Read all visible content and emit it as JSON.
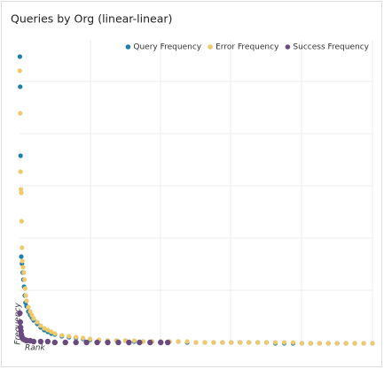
{
  "chart_data": {
    "type": "scatter",
    "title": "Queries by Org (linear-linear)",
    "x_label": "Rank",
    "y_label": "Frequency",
    "xlim": [
      0,
      1000
    ],
    "ylim": [
      0,
      340
    ],
    "series": [
      {
        "name": "Query Frequency",
        "color": "#1f7fb0",
        "x": [
          1,
          2,
          3,
          5,
          7,
          9,
          11,
          13,
          15,
          17,
          20,
          25,
          30,
          35,
          40,
          50,
          60,
          70,
          80,
          90,
          100,
          120,
          140,
          160,
          180,
          200,
          225,
          250,
          275,
          300,
          325,
          350,
          375,
          400,
          425,
          450,
          475,
          500,
          525,
          550,
          575,
          600,
          625,
          650,
          675,
          700,
          725,
          750,
          775,
          800,
          825,
          850,
          875,
          900,
          925,
          950,
          975,
          1000
        ],
        "values": [
          326,
          292,
          214,
          100,
          92,
          82,
          74,
          66,
          56,
          48,
          44,
          38,
          34,
          31,
          28,
          24,
          20,
          17,
          15,
          13,
          12,
          10,
          9,
          8,
          7,
          6,
          5,
          5,
          5,
          5,
          4,
          4,
          4,
          4,
          4,
          4,
          3,
          3,
          3,
          3,
          3,
          3,
          3,
          3,
          3,
          3,
          2,
          2,
          2,
          2,
          2,
          2,
          2,
          2,
          2,
          2,
          2,
          2
        ]
      },
      {
        "name": "Error Frequency",
        "color": "#f0c96b",
        "x": [
          1,
          2,
          3,
          4,
          5,
          6,
          7,
          8,
          10,
          12,
          14,
          16,
          18,
          20,
          25,
          30,
          35,
          40,
          50,
          60,
          70,
          80,
          90,
          100,
          120,
          140,
          160,
          180,
          200,
          225,
          250,
          275,
          300,
          325,
          350,
          375,
          400,
          425,
          450,
          475,
          500,
          525,
          550,
          575,
          600,
          625,
          650,
          675,
          700,
          725,
          750,
          775,
          800,
          825,
          850,
          875,
          900,
          925,
          950,
          975,
          1000
        ],
        "values": [
          310,
          262,
          196,
          176,
          172,
          140,
          110,
          95,
          88,
          82,
          74,
          64,
          56,
          50,
          43,
          38,
          34,
          30,
          26,
          22,
          19,
          17,
          15,
          13,
          11,
          10,
          9,
          8,
          7,
          6,
          5,
          5,
          5,
          5,
          4,
          4,
          4,
          4,
          4,
          4,
          3,
          3,
          3,
          3,
          3,
          3,
          3,
          3,
          3,
          3,
          3,
          3,
          2,
          2,
          2,
          2,
          2,
          2,
          2,
          2,
          2
        ]
      },
      {
        "name": "Success Frequency",
        "color": "#6a4a7f",
        "x": [
          1,
          2,
          3,
          4,
          5,
          6,
          8,
          10,
          15,
          20,
          30,
          40,
          60,
          80,
          100,
          130,
          160,
          190,
          220,
          250,
          280,
          310,
          340,
          370,
          400,
          420
        ],
        "values": [
          36,
          26,
          20,
          16,
          12,
          10,
          8,
          7,
          6,
          5,
          5,
          4,
          4,
          4,
          3,
          3,
          3,
          3,
          3,
          3,
          3,
          3,
          3,
          3,
          3,
          3
        ]
      }
    ]
  }
}
